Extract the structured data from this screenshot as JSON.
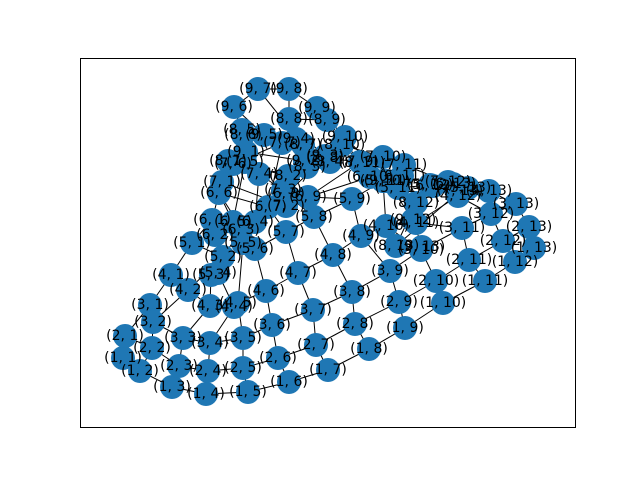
{
  "diagram": {
    "type": "grid-graph",
    "rows": [
      1,
      2,
      3,
      4,
      5,
      6,
      7,
      8,
      9
    ],
    "columns": [
      1,
      2,
      3,
      4,
      5,
      6,
      7,
      8,
      9,
      10,
      11,
      12,
      13
    ],
    "label_format": "(r, c)",
    "node_color": "#1f77b4",
    "edge_color": "#000000",
    "frame_color": "#000000",
    "background": "#ffffff"
  }
}
